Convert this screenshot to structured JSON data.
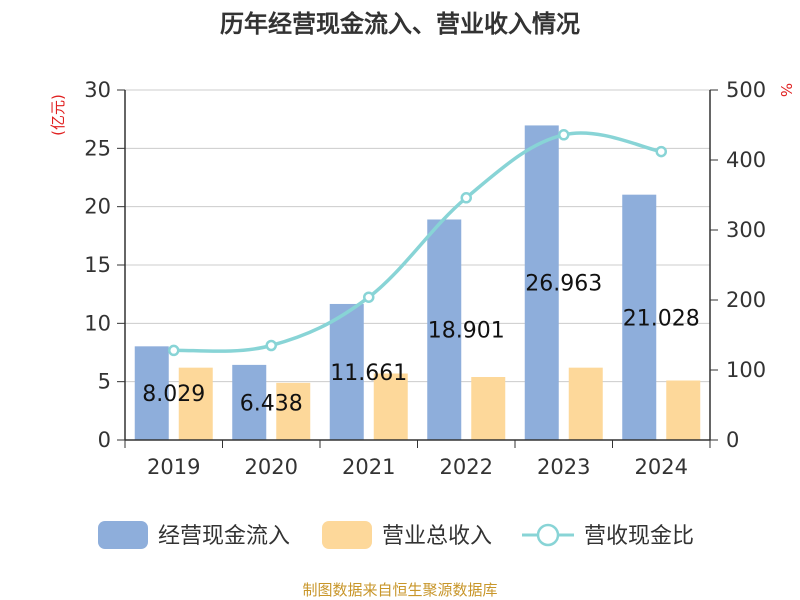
{
  "chart_data": {
    "type": "bar",
    "title": "历年经营现金流入、营业收入情况",
    "categories": [
      "2019",
      "2020",
      "2021",
      "2022",
      "2023",
      "2024"
    ],
    "y_left": {
      "label": "(亿元)",
      "ylim": [
        0,
        30
      ],
      "ticks": [
        0,
        5,
        10,
        15,
        20,
        25,
        30
      ]
    },
    "y_right": {
      "label": "%",
      "ylim": [
        0,
        500
      ],
      "ticks": [
        0,
        100,
        200,
        300,
        400,
        500
      ]
    },
    "series": [
      {
        "name": "经营现金流入",
        "kind": "bar",
        "axis": "left",
        "color": "#8eaedb",
        "values": [
          8.029,
          6.438,
          11.661,
          18.901,
          26.963,
          21.028
        ],
        "labels": [
          "8.029",
          "6.438",
          "11.661",
          "18.901",
          "26.963",
          "21.028"
        ]
      },
      {
        "name": "营业总收入",
        "kind": "bar",
        "axis": "left",
        "color": "#fdd89a",
        "values": [
          6.2,
          4.9,
          5.7,
          5.4,
          6.2,
          5.1
        ]
      },
      {
        "name": "营收现金比",
        "kind": "line",
        "axis": "right",
        "color": "#88d4d6",
        "values": [
          128,
          135,
          204,
          346,
          436,
          412
        ]
      }
    ],
    "grid": true,
    "legend_position": "bottom"
  },
  "source_text": "制图数据来自恒生聚源数据库",
  "colors": {
    "axis": "#333333",
    "grid": "#cccccc",
    "unit": "#e02020",
    "source": "#c8962a"
  }
}
